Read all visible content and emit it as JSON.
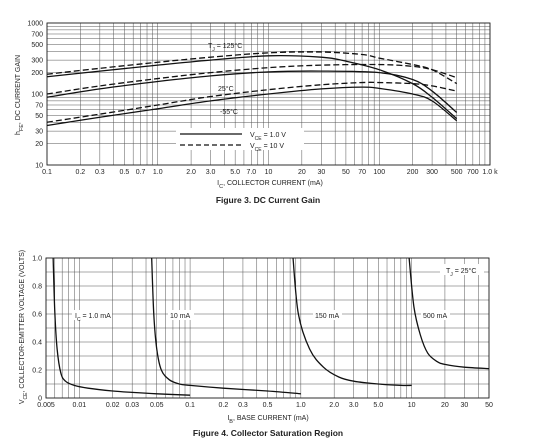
{
  "chart_data": [
    {
      "type": "line",
      "caption": "Figure 3. DC Current Gain",
      "xlabel": "I_C, COLLECTOR CURRENT (mA)",
      "ylabel": "h_FE, DC CURRENT GAIN",
      "x_scale": "log",
      "y_scale": "log",
      "xlim": [
        0.1,
        1000
      ],
      "ylim": [
        10,
        1000
      ],
      "x_ticks": [
        0.1,
        0.2,
        0.3,
        0.5,
        0.7,
        1.0,
        2.0,
        3.0,
        5.0,
        7.0,
        10,
        20,
        30,
        50,
        70,
        100,
        200,
        300,
        500,
        700,
        1000
      ],
      "x_tick_labels": [
        "0.1",
        "0.2",
        "0.3",
        "0.5",
        "0.7",
        "1.0",
        "2.0",
        "3.0",
        "5.0",
        "7.0",
        "10",
        "20",
        "30",
        "50",
        "70",
        "100",
        "200",
        "300",
        "500",
        "700",
        "1.0 k"
      ],
      "y_ticks": [
        10,
        20,
        30,
        50,
        70,
        100,
        200,
        300,
        500,
        700,
        1000
      ],
      "y_tick_labels": [
        "10",
        "20",
        "30",
        "50",
        "70",
        "100",
        "200",
        "300",
        "500",
        "700",
        "1000"
      ],
      "grid": true,
      "legend": [
        {
          "label": "V_CE = 1.0 V",
          "style": "solid"
        },
        {
          "label": "V_CE = 10 V",
          "style": "dashed"
        }
      ],
      "annotations": [
        "T_J = 125°C",
        "25°C",
        "-55°C"
      ],
      "series": [
        {
          "temp": "125°C",
          "vce": "1.0 V",
          "style": "solid",
          "x": [
            0.1,
            0.3,
            1,
            3,
            10,
            30,
            50,
            100,
            200,
            300,
            500
          ],
          "y": [
            175,
            210,
            255,
            300,
            345,
            330,
            290,
            220,
            140,
            90,
            45
          ]
        },
        {
          "temp": "125°C",
          "vce": "10 V",
          "style": "dashed",
          "x": [
            0.1,
            0.3,
            1,
            3,
            10,
            30,
            70,
            100,
            200,
            300,
            500
          ],
          "y": [
            190,
            230,
            280,
            330,
            380,
            390,
            360,
            320,
            260,
            220,
            140
          ]
        },
        {
          "temp": "25°C",
          "vce": "1.0 V",
          "style": "solid",
          "x": [
            0.1,
            0.3,
            1,
            3,
            10,
            30,
            100,
            200,
            300,
            500
          ],
          "y": [
            90,
            118,
            150,
            180,
            205,
            210,
            200,
            160,
            110,
            55
          ]
        },
        {
          "temp": "25°C",
          "vce": "10 V",
          "style": "dashed",
          "x": [
            0.1,
            0.3,
            1,
            3,
            10,
            30,
            100,
            200,
            300,
            500
          ],
          "y": [
            100,
            130,
            165,
            200,
            235,
            255,
            260,
            245,
            220,
            170
          ]
        },
        {
          "temp": "-55°C",
          "vce": "1.0 V",
          "style": "solid",
          "x": [
            0.1,
            0.3,
            1,
            3,
            10,
            30,
            70,
            100,
            200,
            300,
            500
          ],
          "y": [
            36,
            47,
            62,
            80,
            100,
            118,
            125,
            120,
            100,
            80,
            42
          ]
        },
        {
          "temp": "-55°C",
          "vce": "10 V",
          "style": "dashed",
          "x": [
            0.1,
            0.3,
            1,
            3,
            10,
            30,
            70,
            100,
            200,
            300,
            500
          ],
          "y": [
            40,
            52,
            70,
            92,
            115,
            135,
            145,
            145,
            140,
            130,
            110
          ]
        }
      ]
    },
    {
      "type": "line",
      "caption": "Figure 4. Collector Saturation Region",
      "xlabel": "I_B, BASE CURRENT (mA)",
      "ylabel": "V_CE, COLLECTOR-EMITTER VOLTAGE (VOLTS)",
      "x_scale": "log",
      "xlim": [
        0.005,
        50
      ],
      "ylim": [
        0,
        1.0
      ],
      "x_ticks": [
        0.005,
        0.01,
        0.02,
        0.03,
        0.05,
        0.1,
        0.2,
        0.3,
        0.5,
        1.0,
        2.0,
        3.0,
        5.0,
        10,
        20,
        30,
        50
      ],
      "x_tick_labels": [
        "0.005",
        "0.01",
        "0.02",
        "0.03",
        "0.05",
        "0.1",
        "0.2",
        "0.3",
        "0.5",
        "1.0",
        "2.0",
        "3.0",
        "5.0",
        "10",
        "20",
        "30",
        "50"
      ],
      "y_ticks": [
        0,
        0.2,
        0.4,
        0.6,
        0.8,
        1.0
      ],
      "y_tick_labels": [
        "0",
        "0.2",
        "0.4",
        "0.6",
        "0.8",
        "1.0"
      ],
      "grid": true,
      "annotations": [
        "T_J = 25°C"
      ],
      "series": [
        {
          "name": "I_C = 1.0 mA",
          "x": [
            0.0058,
            0.006,
            0.0063,
            0.0068,
            0.0075,
            0.009,
            0.012,
            0.02,
            0.03,
            0.05,
            0.1
          ],
          "y": [
            1.0,
            0.62,
            0.35,
            0.18,
            0.12,
            0.09,
            0.07,
            0.05,
            0.04,
            0.03,
            0.02
          ]
        },
        {
          "name": "10 mA",
          "x": [
            0.045,
            0.047,
            0.05,
            0.055,
            0.065,
            0.08,
            0.1,
            0.2,
            0.5,
            1.0
          ],
          "y": [
            1.0,
            0.6,
            0.35,
            0.2,
            0.13,
            0.1,
            0.09,
            0.07,
            0.05,
            0.03
          ]
        },
        {
          "name": "150 mA",
          "x": [
            0.85,
            0.95,
            1.2,
            1.6,
            2.2,
            3.0,
            5.0,
            8.0,
            10
          ],
          "y": [
            1.0,
            0.6,
            0.35,
            0.22,
            0.15,
            0.12,
            0.1,
            0.09,
            0.09
          ]
        },
        {
          "name": "500 mA",
          "x": [
            9.5,
            10.5,
            12,
            14,
            17,
            20,
            30,
            50
          ],
          "y": [
            1.0,
            0.65,
            0.45,
            0.32,
            0.26,
            0.24,
            0.22,
            0.21
          ]
        }
      ]
    }
  ],
  "figure3": {
    "caption": "Figure 3. DC Current Gain",
    "ylabel": "h",
    "ylabel_sub": "FE",
    "ylabel_rest": ", DC CURRENT GAIN",
    "xlabel": "I",
    "xlabel_sub": "C",
    "xlabel_rest": ", COLLECTOR CURRENT (mA)",
    "tj_label": "T",
    "tj_sub": "J",
    "tj_rest": " = 125°C",
    "temp_25": "25°C",
    "temp_neg55": "-55°C",
    "legend_solid": "V",
    "legend_solid_sub": "CE",
    "legend_solid_rest": " = 1.0 V",
    "legend_dashed": "V",
    "legend_dashed_sub": "CE",
    "legend_dashed_rest": " = 10 V"
  },
  "figure4": {
    "caption": "Figure 4. Collector Saturation Region",
    "ylabel": "V",
    "ylabel_sub": "CE",
    "ylabel_rest": ", COLLECTOR-EMITTER VOLTAGE (VOLTS)",
    "xlabel": "I",
    "xlabel_sub": "B",
    "xlabel_rest": ", BASE CURRENT (mA)",
    "tj_label": "T",
    "tj_sub": "J",
    "tj_rest": " = 25°C",
    "ic_1": "I",
    "ic_1_sub": "C",
    "ic_1_rest": " = 1.0 mA",
    "ic_10": "10 mA",
    "ic_150": "150 mA",
    "ic_500": "500 mA"
  },
  "colors": {
    "curve": "#111111",
    "grid": "#555555",
    "text": "#222222"
  }
}
